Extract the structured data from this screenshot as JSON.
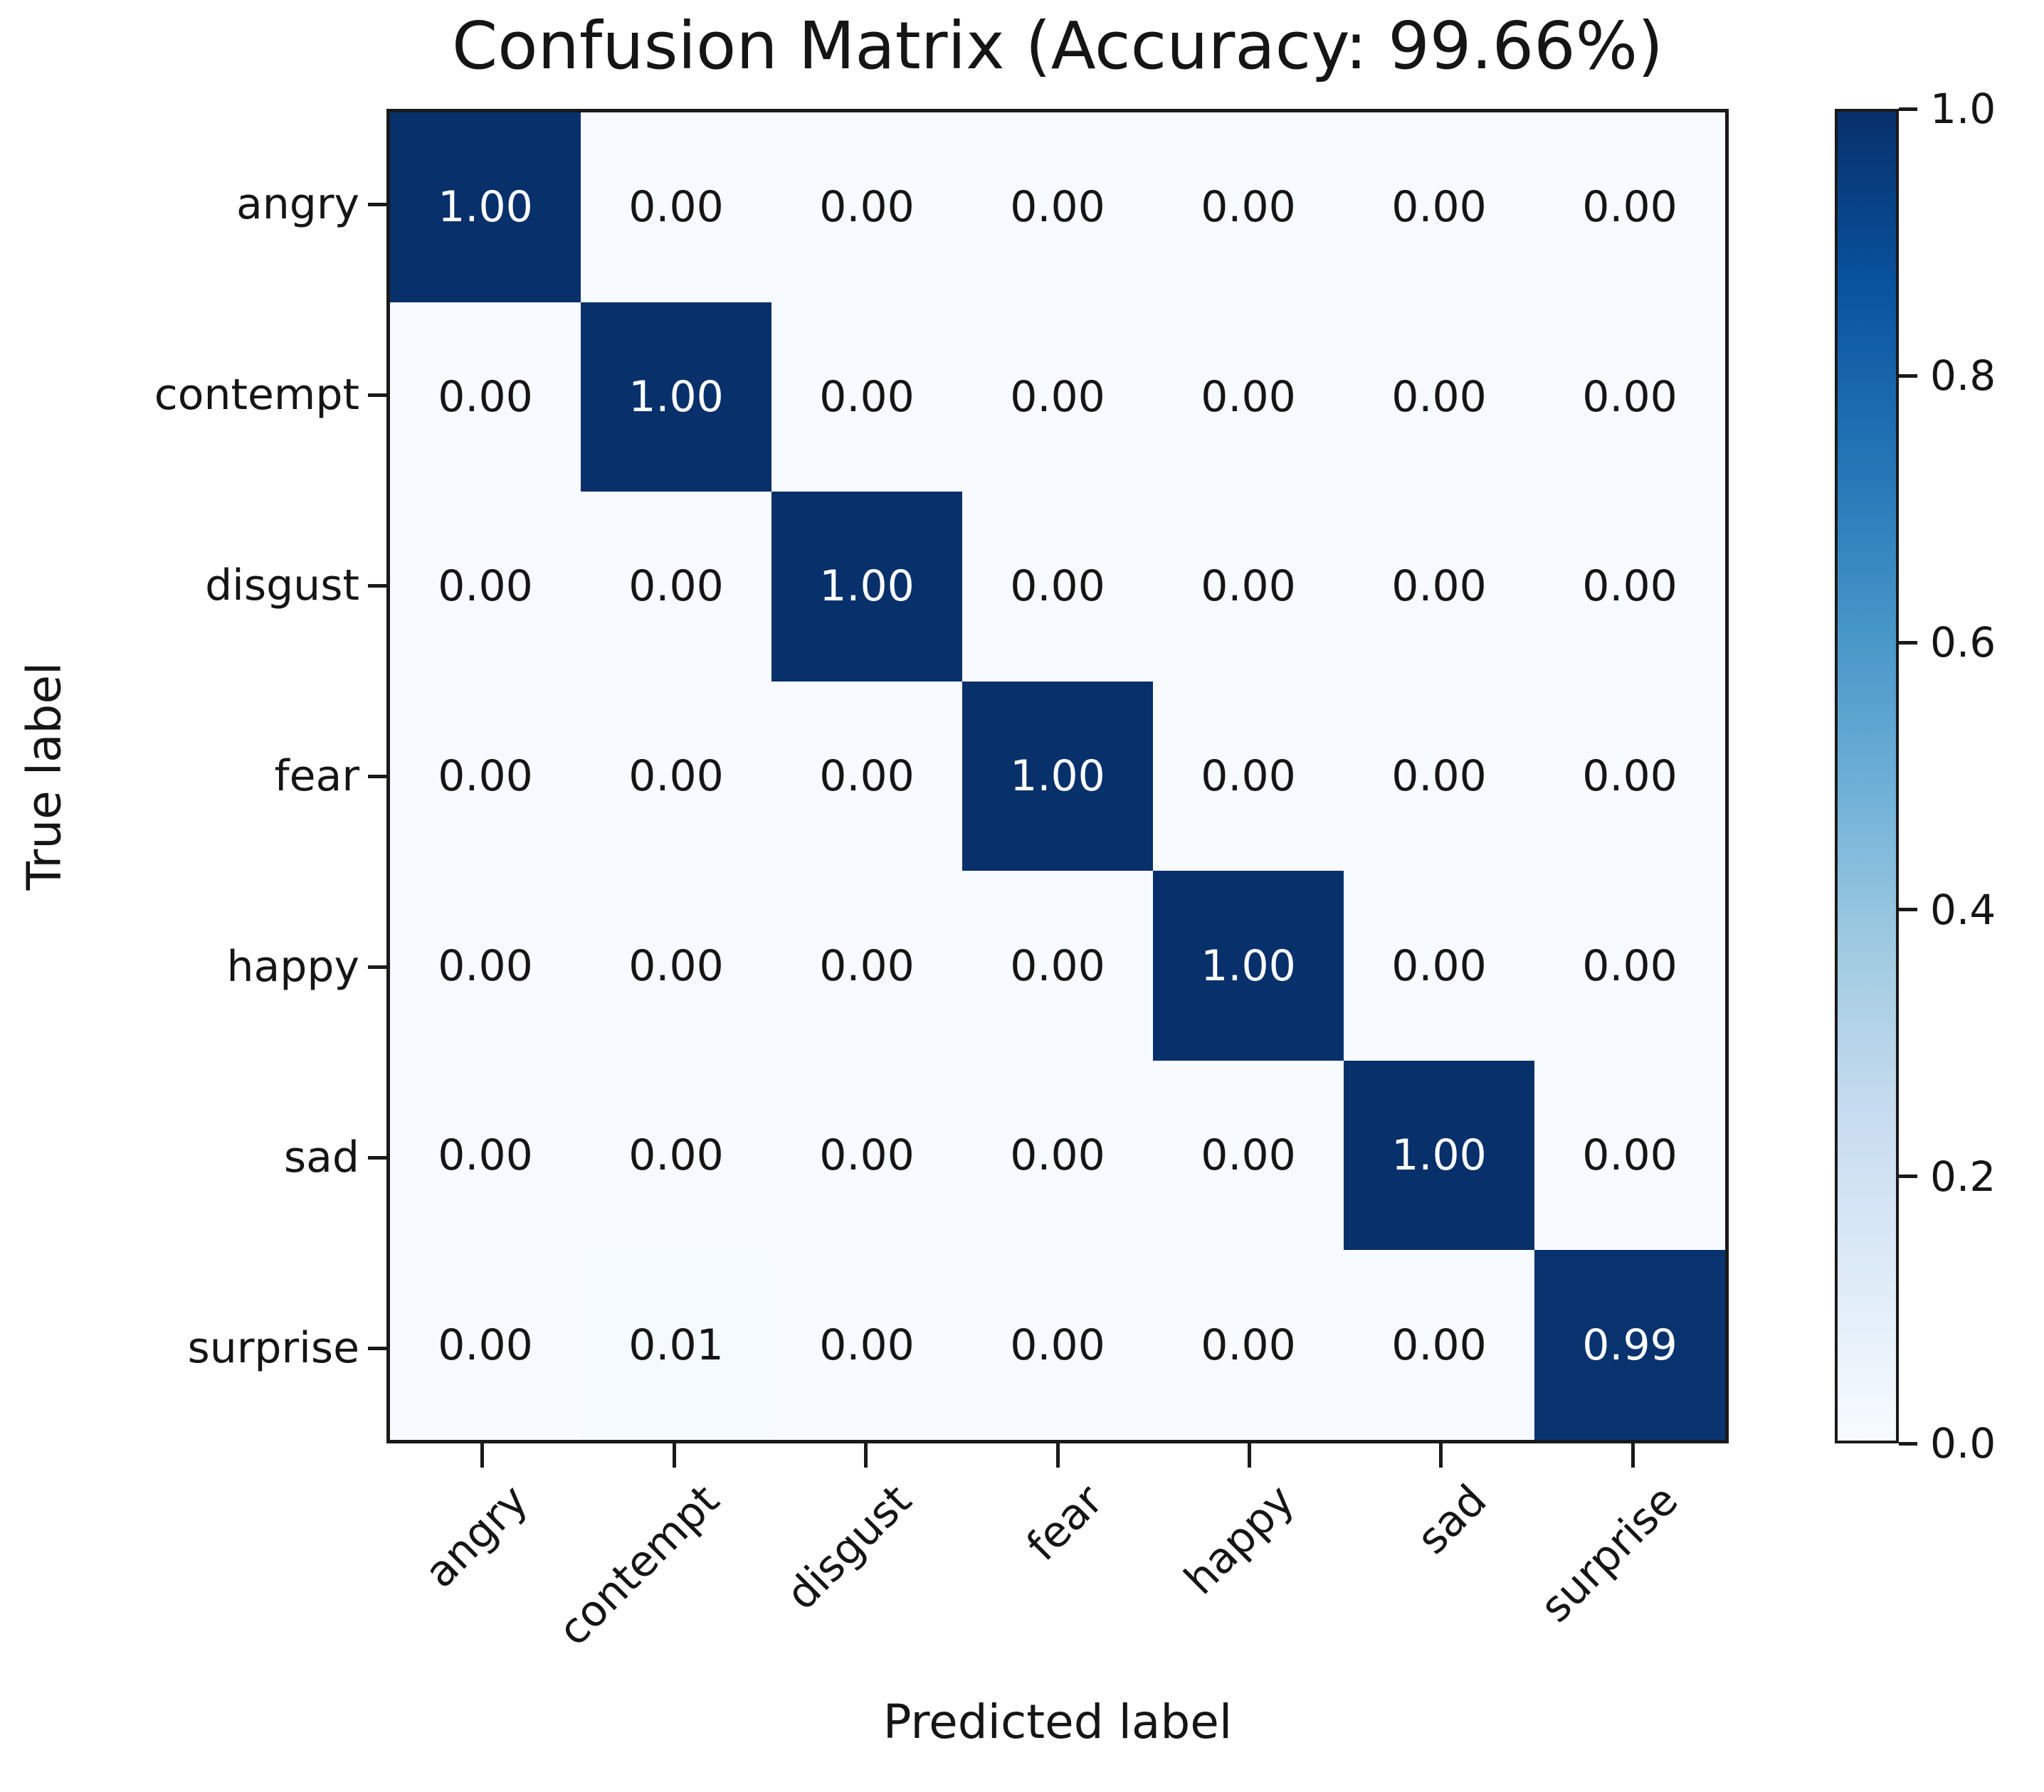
{
  "figure": {
    "title": "Confusion Matrix (Accuracy: 99.66%)",
    "x_axis_label": "Predicted label",
    "y_axis_label": "True label"
  },
  "chart_data": {
    "type": "heatmap",
    "title": "Confusion Matrix (Accuracy: 99.66%)",
    "xlabel": "Predicted label",
    "ylabel": "True label",
    "accuracy_pct": 99.66,
    "categories": [
      "angry",
      "contempt",
      "disgust",
      "fear",
      "happy",
      "sad",
      "surprise"
    ],
    "x_tick_labels": [
      "angry",
      "contempt",
      "disgust",
      "fear",
      "happy",
      "sad",
      "surprise"
    ],
    "y_tick_labels": [
      "angry",
      "contempt",
      "disgust",
      "fear",
      "happy",
      "sad",
      "surprise"
    ],
    "matrix": [
      [
        1.0,
        0.0,
        0.0,
        0.0,
        0.0,
        0.0,
        0.0
      ],
      [
        0.0,
        1.0,
        0.0,
        0.0,
        0.0,
        0.0,
        0.0
      ],
      [
        0.0,
        0.0,
        1.0,
        0.0,
        0.0,
        0.0,
        0.0
      ],
      [
        0.0,
        0.0,
        0.0,
        1.0,
        0.0,
        0.0,
        0.0
      ],
      [
        0.0,
        0.0,
        0.0,
        0.0,
        1.0,
        0.0,
        0.0
      ],
      [
        0.0,
        0.0,
        0.0,
        0.0,
        0.0,
        1.0,
        0.0
      ],
      [
        0.0,
        0.01,
        0.0,
        0.0,
        0.0,
        0.0,
        0.99
      ]
    ],
    "value_format_decimals": 2,
    "vmin": 0.0,
    "vmax": 1.0,
    "x_tick_rotation_deg": 45,
    "grid": false,
    "colormap": {
      "name": "Blues",
      "stops": [
        "#f7fbff",
        "#deebf7",
        "#c6dbef",
        "#9ecae1",
        "#6baed6",
        "#4292c6",
        "#2171b5",
        "#08519c",
        "#08306b"
      ]
    },
    "colorbar": {
      "position": "right",
      "tick_labels": [
        "1.0",
        "0.8",
        "0.6",
        "0.4",
        "0.2",
        "0.0"
      ],
      "tick_values": [
        1.0,
        0.8,
        0.6,
        0.4,
        0.2,
        0.0
      ]
    }
  },
  "colors": {
    "background": "#ffffff",
    "spine": "#1a1a1a",
    "text": "#151515",
    "cell_text_dark": "#151515",
    "cell_text_light": "#ffffff"
  }
}
